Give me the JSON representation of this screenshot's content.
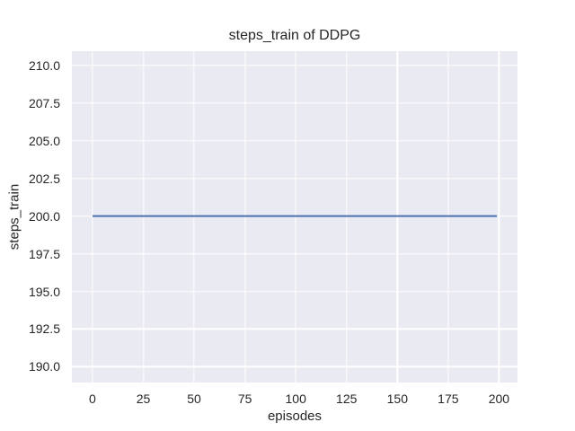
{
  "figure": {
    "background": "#ffffff"
  },
  "chart_data": {
    "type": "line",
    "title": "steps_train of DDPG",
    "xlabel": "episodes",
    "ylabel": "steps_train",
    "x_ticks": [
      0,
      25,
      50,
      75,
      100,
      125,
      150,
      175,
      200
    ],
    "y_ticks": [
      "210.0",
      "207.5",
      "205.0",
      "202.5",
      "200.0",
      "197.5",
      "195.0",
      "192.5",
      "190.0"
    ],
    "y_tick_values": [
      210.0,
      207.5,
      205.0,
      202.5,
      200.0,
      197.5,
      195.0,
      192.5,
      190.0
    ],
    "xlim": [
      -10.15,
      209.1
    ],
    "ylim": [
      188.95,
      210.95
    ],
    "grid": true,
    "legend": "none",
    "series": [
      {
        "name": "steps_train",
        "color": "#4c72b0",
        "x": [
          0,
          199
        ],
        "y": [
          200,
          200
        ],
        "summary": "constant value 200 across episodes 0 to 199"
      }
    ],
    "style": {
      "plot_background": "#eaeaf2",
      "grid_color": "#ffffff",
      "text_color": "#262626",
      "line_width": 2
    }
  }
}
